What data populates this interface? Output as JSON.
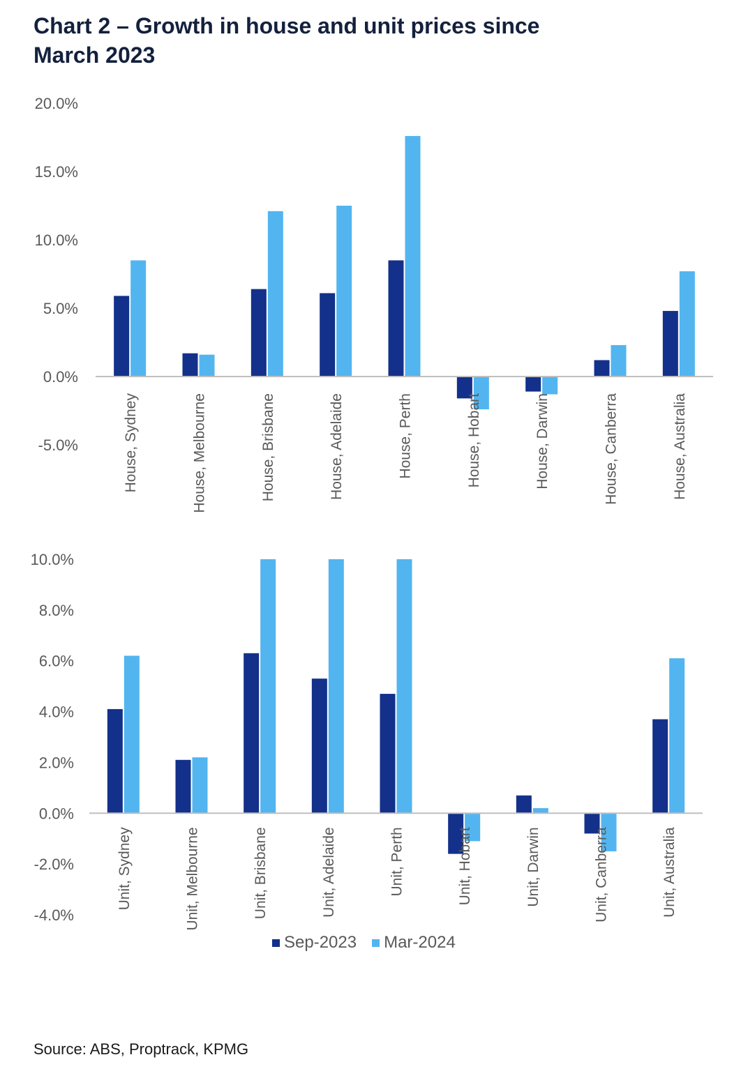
{
  "title_line1": "Chart 2 – Growth in house and unit prices since",
  "title_line2": "March 2023",
  "colors": {
    "sep": "#13308a",
    "mar": "#52b5f0",
    "axis": "#bfbfbf",
    "text": "#595959"
  },
  "legend": [
    {
      "name": "Sep-2023",
      "color": "#13308a"
    },
    {
      "name": "Mar-2024",
      "color": "#52b5f0"
    }
  ],
  "source": "Source: ABS, Proptrack, KPMG",
  "chart_data": [
    {
      "type": "bar",
      "categories": [
        "House, Sydney",
        "House, Melbourne",
        "House, Brisbane",
        "House, Adelaide",
        "House, Perth",
        "House, Hobart",
        "House, Darwin",
        "House, Canberra",
        "House, Australia"
      ],
      "series": [
        {
          "name": "Sep-2023",
          "values": [
            5.9,
            1.7,
            6.4,
            6.1,
            8.5,
            -1.6,
            -1.1,
            1.2,
            4.8
          ]
        },
        {
          "name": "Mar-2024",
          "values": [
            8.5,
            1.6,
            12.1,
            12.5,
            17.6,
            -2.4,
            -1.3,
            2.3,
            7.7
          ]
        }
      ],
      "yticks": [
        "20.0%",
        "15.0%",
        "10.0%",
        "5.0%",
        "0.0%",
        "-5.0%"
      ],
      "ylim": [
        -5,
        20
      ],
      "grid": false
    },
    {
      "type": "bar",
      "categories": [
        "Unit, Sydney",
        "Unit, Melbourne",
        "Unit, Brisbane",
        "Unit, Adelaide",
        "Unit, Perth",
        "Unit, Hobart",
        "Unit, Darwin",
        "Unit, Canberra",
        "Unit, Australia"
      ],
      "series": [
        {
          "name": "Sep-2023",
          "values": [
            4.1,
            2.1,
            6.3,
            5.3,
            4.7,
            -1.6,
            0.7,
            -0.8,
            3.7
          ]
        },
        {
          "name": "Mar-2024",
          "values": [
            6.2,
            2.2,
            10.0,
            10.0,
            10.0,
            -1.1,
            0.2,
            -1.5,
            6.1
          ]
        }
      ],
      "yticks": [
        "10.0%",
        "8.0%",
        "6.0%",
        "4.0%",
        "2.0%",
        "0.0%",
        "-2.0%",
        "-4.0%"
      ],
      "ylim": [
        -4,
        10
      ],
      "grid": false
    }
  ]
}
